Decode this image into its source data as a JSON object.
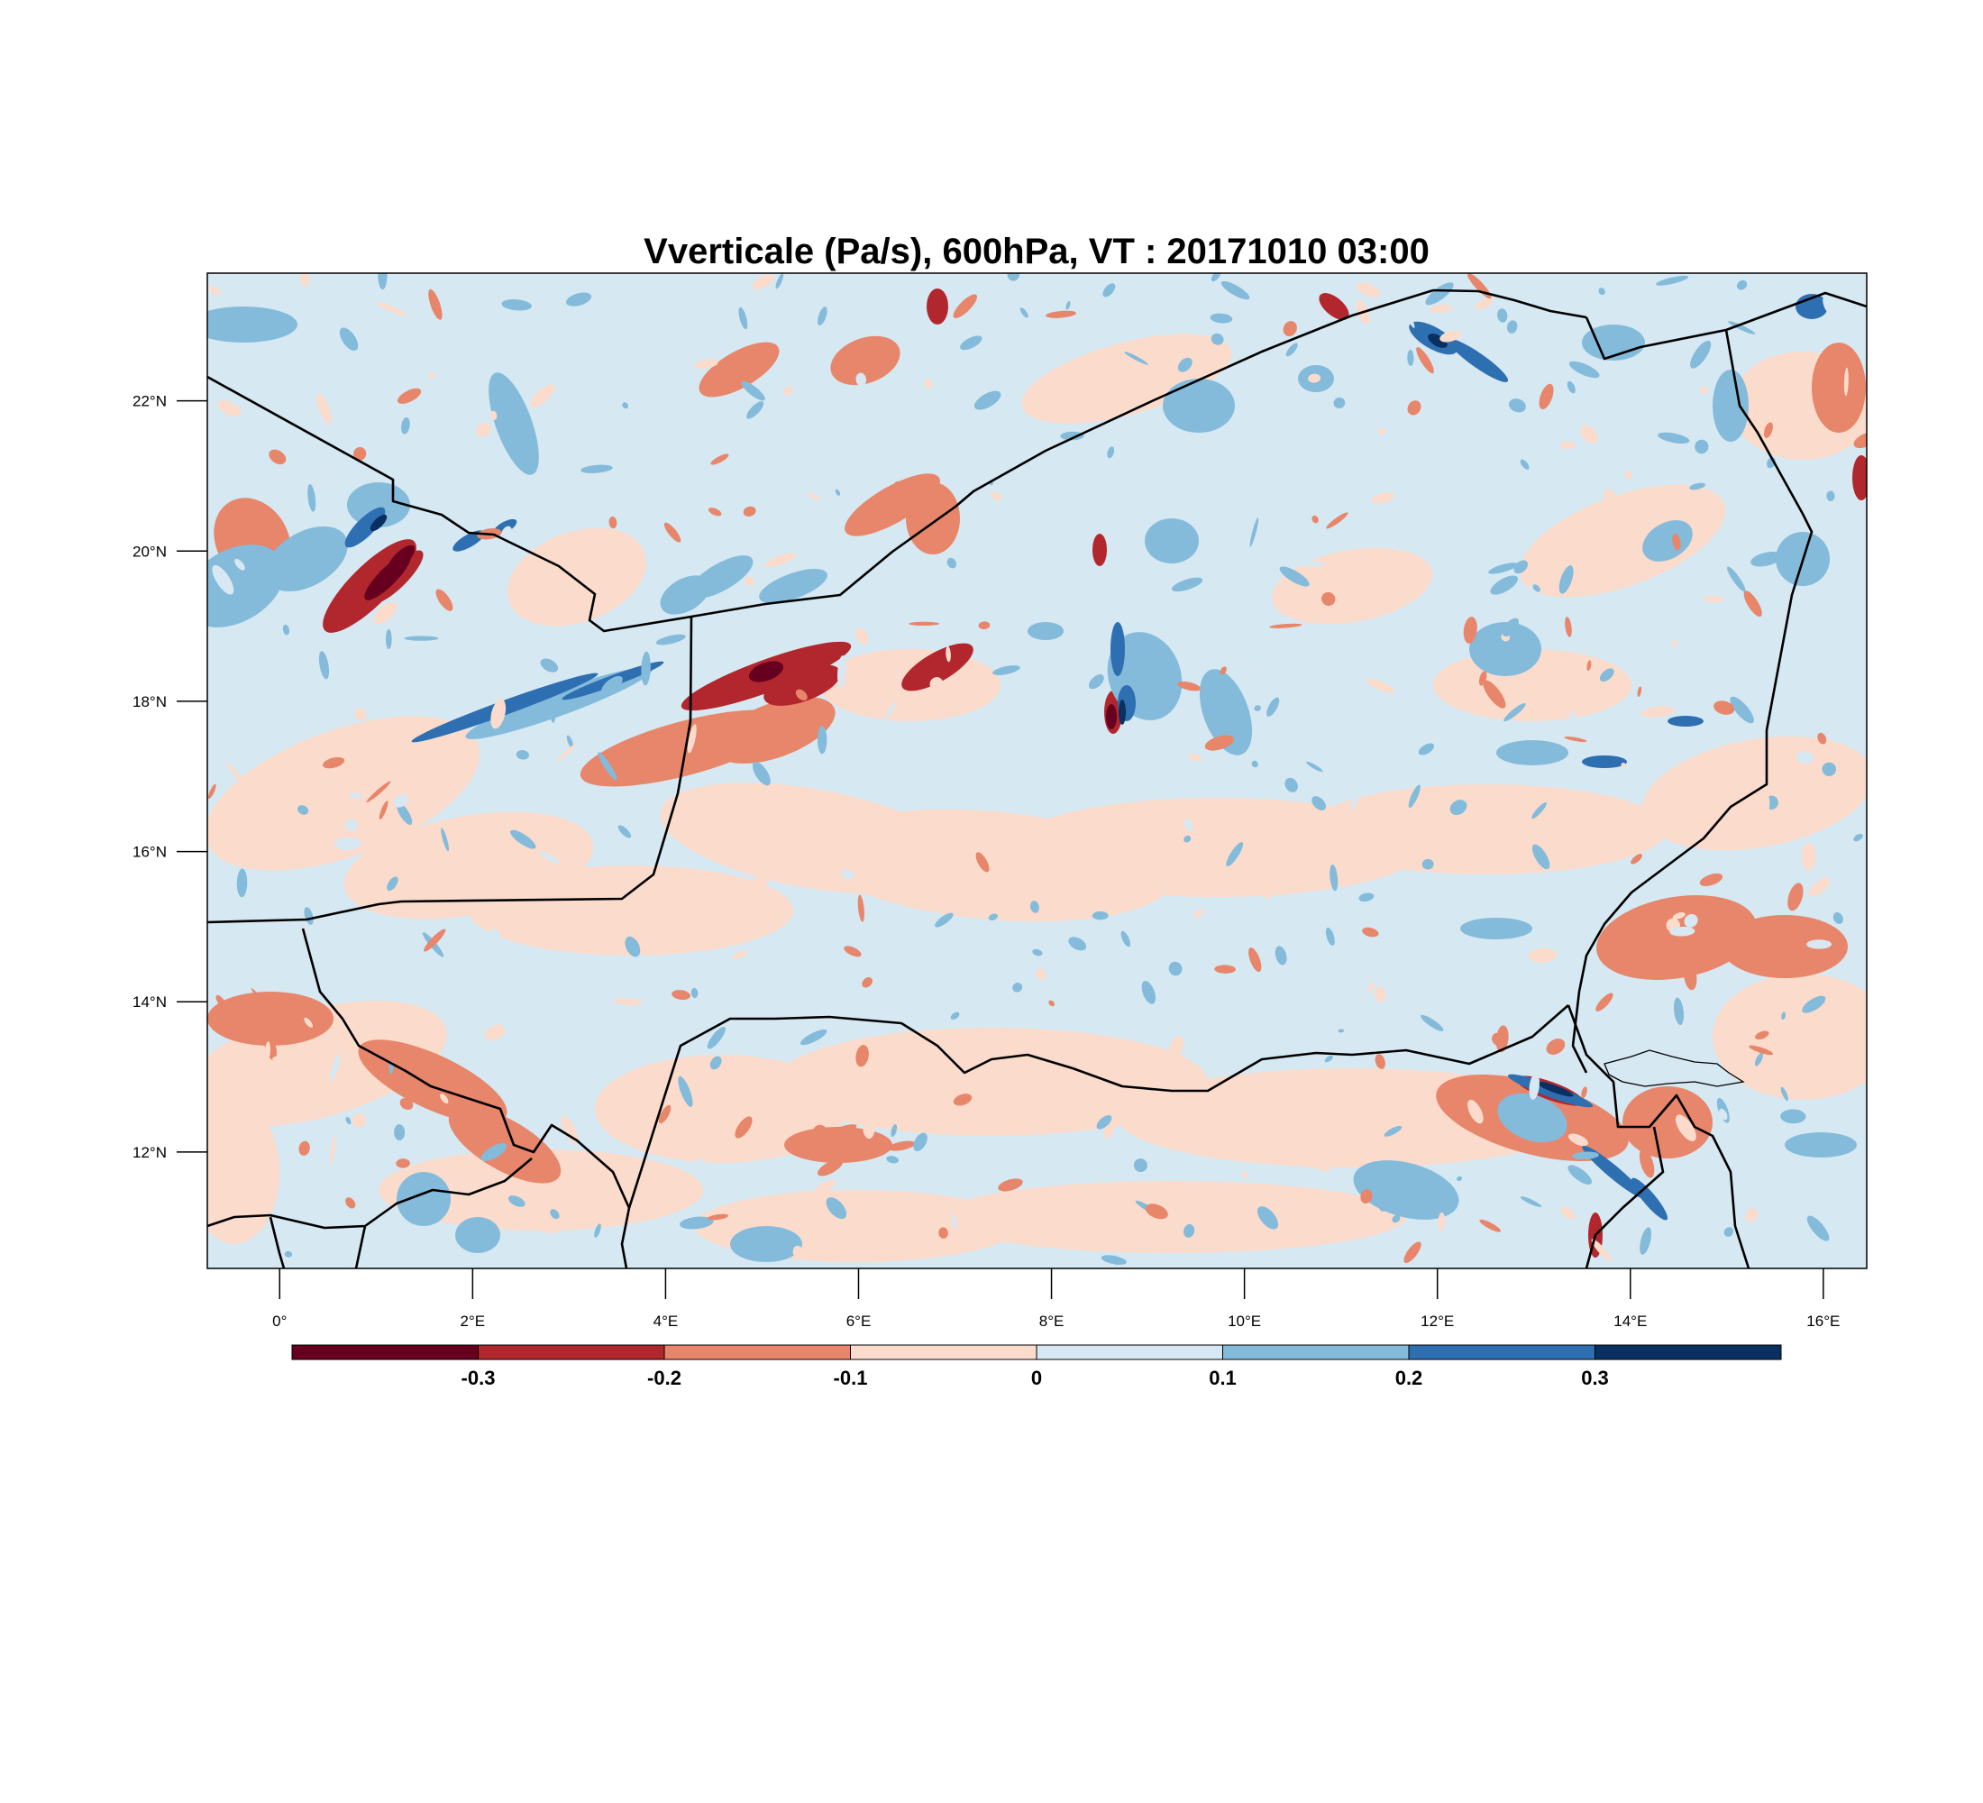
{
  "title": "Vverticale (Pa/s), 600hPa, VT : 20171010  03:00",
  "map": {
    "lon_range": [
      -0.75,
      16.45
    ],
    "lat_range": [
      10.45,
      23.7
    ],
    "lon_ticks": [
      {
        "value": 0,
        "label": "0°"
      },
      {
        "value": 2,
        "label": "2°E"
      },
      {
        "value": 4,
        "label": "4°E"
      },
      {
        "value": 6,
        "label": "6°E"
      },
      {
        "value": 8,
        "label": "8°E"
      },
      {
        "value": 10,
        "label": "10°E"
      },
      {
        "value": 12,
        "label": "12°E"
      },
      {
        "value": 14,
        "label": "14°E"
      },
      {
        "value": 16,
        "label": "16°E"
      }
    ],
    "lat_ticks": [
      {
        "value": 12,
        "label": "12°N"
      },
      {
        "value": 14,
        "label": "14°N"
      },
      {
        "value": 16,
        "label": "16°N"
      },
      {
        "value": 18,
        "label": "18°N"
      },
      {
        "value": 20,
        "label": "20°N"
      },
      {
        "value": 22,
        "label": "22°N"
      }
    ],
    "background_color": "#d6e8f2",
    "border_color": "#000000"
  },
  "colorbar": {
    "colors": [
      "#67001f",
      "#b2272e",
      "#e7866a",
      "#fbdccc",
      "#d7e8f2",
      "#84bbdb",
      "#2e6fb2",
      "#0a2f61"
    ],
    "labels": [
      "-0.3",
      "-0.2",
      "-0.1",
      "0",
      "0.1",
      "0.2",
      "0.3"
    ]
  }
}
